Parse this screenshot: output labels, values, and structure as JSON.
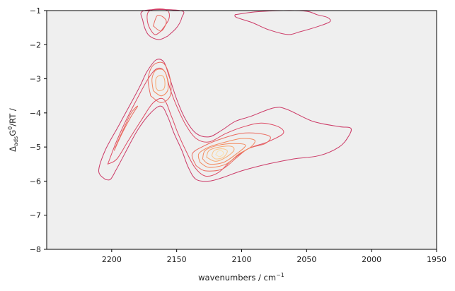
{
  "chart_data": {
    "type": "contour",
    "xlabel": "wavenumbers / cm",
    "xlabel_sup": "−1",
    "ylabel_parts": {
      "delta": "Δ",
      "sub": "ads",
      "g": "G",
      "sup": "0",
      "rest": "/RT /"
    },
    "xlim": [
      2250,
      1950
    ],
    "ylim": [
      -8,
      -1
    ],
    "x_reversed": true,
    "x_ticks": [
      2200,
      2150,
      2100,
      2050,
      2000,
      1950
    ],
    "y_ticks": [
      -1,
      -2,
      -3,
      -4,
      -5,
      -6,
      -7,
      -8
    ],
    "x_tick_labels": [
      "2200",
      "2150",
      "2100",
      "2050",
      "2000",
      "1950"
    ],
    "y_tick_labels": [
      "−1",
      "−2",
      "−3",
      "−4",
      "−5",
      "−6",
      "−7",
      "−8"
    ],
    "plot_background": "#efefef",
    "colormap": [
      "#cc3a67",
      "#e35860",
      "#ef7b5f",
      "#f59c6b",
      "#f9bc82",
      "#fcdca4"
    ],
    "grid": false,
    "density_peaks": [
      {
        "x": 2117,
        "y": -5.2,
        "relative_height": 1.0
      },
      {
        "x": 2162,
        "y": -3.1,
        "relative_height": 0.6
      },
      {
        "x": 2187,
        "y": -4.4,
        "relative_height": 0.45
      },
      {
        "x": 2160,
        "y": -1.3,
        "relative_height": 0.4
      },
      {
        "x": 2080,
        "y": -4.6,
        "relative_height": 0.2
      }
    ],
    "contours": [
      {
        "level": 1,
        "color": "#cc3a67",
        "points": [
          [
            2205,
            -5.95
          ],
          [
            2210,
            -5.7
          ],
          [
            2205,
            -5.1
          ],
          [
            2195,
            -4.4
          ],
          [
            2185,
            -3.7
          ],
          [
            2178,
            -3.2
          ],
          [
            2173,
            -2.8
          ],
          [
            2166,
            -2.45
          ],
          [
            2160,
            -2.5
          ],
          [
            2156,
            -2.9
          ],
          [
            2150,
            -3.6
          ],
          [
            2143,
            -4.2
          ],
          [
            2135,
            -4.6
          ],
          [
            2125,
            -4.7
          ],
          [
            2115,
            -4.5
          ],
          [
            2105,
            -4.25
          ],
          [
            2093,
            -4.1
          ],
          [
            2075,
            -3.85
          ],
          [
            2065,
            -3.9
          ],
          [
            2045,
            -4.25
          ],
          [
            2025,
            -4.4
          ],
          [
            2016,
            -4.45
          ],
          [
            2018,
            -4.7
          ],
          [
            2025,
            -5.0
          ],
          [
            2040,
            -5.25
          ],
          [
            2060,
            -5.35
          ],
          [
            2080,
            -5.5
          ],
          [
            2100,
            -5.7
          ],
          [
            2115,
            -5.9
          ],
          [
            2125,
            -6.0
          ],
          [
            2135,
            -5.95
          ],
          [
            2141,
            -5.6
          ],
          [
            2146,
            -5.1
          ],
          [
            2152,
            -4.6
          ],
          [
            2157,
            -4.1
          ],
          [
            2162,
            -3.8
          ],
          [
            2170,
            -4.0
          ],
          [
            2180,
            -4.5
          ],
          [
            2190,
            -5.2
          ],
          [
            2197,
            -5.7
          ],
          [
            2201,
            -5.95
          ],
          [
            2205,
            -5.95
          ]
        ]
      },
      {
        "level": 2,
        "color": "#dd4a64",
        "points": [
          [
            2203,
            -5.5
          ],
          [
            2197,
            -4.9
          ],
          [
            2190,
            -4.3
          ],
          [
            2182,
            -3.7
          ],
          [
            2172,
            -3.0
          ],
          [
            2165,
            -2.7
          ],
          [
            2159,
            -2.8
          ],
          [
            2155,
            -3.3
          ],
          [
            2150,
            -3.8
          ],
          [
            2143,
            -4.35
          ],
          [
            2135,
            -4.75
          ],
          [
            2125,
            -4.85
          ],
          [
            2112,
            -4.6
          ],
          [
            2098,
            -4.4
          ],
          [
            2085,
            -4.3
          ],
          [
            2072,
            -4.4
          ],
          [
            2068,
            -4.6
          ],
          [
            2080,
            -4.85
          ],
          [
            2095,
            -5.05
          ],
          [
            2108,
            -5.4
          ],
          [
            2118,
            -5.75
          ],
          [
            2128,
            -5.85
          ],
          [
            2136,
            -5.6
          ],
          [
            2143,
            -5.1
          ],
          [
            2149,
            -4.6
          ],
          [
            2154,
            -4.1
          ],
          [
            2160,
            -3.6
          ],
          [
            2168,
            -3.7
          ],
          [
            2177,
            -4.2
          ],
          [
            2187,
            -4.8
          ],
          [
            2196,
            -5.35
          ],
          [
            2203,
            -5.5
          ]
        ]
      },
      {
        "level": 2,
        "color": "#dd4a64",
        "points": [
          [
            2162,
            -1.6
          ],
          [
            2156,
            -1.25
          ],
          [
            2157,
            -1.0
          ],
          [
            2165,
            -0.95
          ],
          [
            2172,
            -1.05
          ],
          [
            2172,
            -1.4
          ],
          [
            2167,
            -1.7
          ],
          [
            2162,
            -1.6
          ]
        ]
      },
      {
        "level": 1,
        "color": "#cc3a67",
        "points": [
          [
            2157,
            -1.75
          ],
          [
            2150,
            -1.5
          ],
          [
            2146,
            -1.2
          ],
          [
            2147,
            -1.0
          ],
          [
            2175,
            -1.0
          ],
          [
            2176,
            -1.3
          ],
          [
            2172,
            -1.7
          ],
          [
            2164,
            -1.85
          ],
          [
            2157,
            -1.75
          ]
        ]
      },
      {
        "level": 1,
        "color": "#cc3a67",
        "points": [
          [
            2105,
            -1.12
          ],
          [
            2104,
            -1.2
          ],
          [
            2092,
            -1.35
          ],
          [
            2080,
            -1.55
          ],
          [
            2065,
            -1.7
          ],
          [
            2055,
            -1.62
          ],
          [
            2040,
            -1.45
          ],
          [
            2032,
            -1.32
          ],
          [
            2034,
            -1.2
          ],
          [
            2042,
            -1.12
          ],
          [
            2050,
            -1.02
          ],
          [
            2068,
            -1.0
          ],
          [
            2090,
            -1.04
          ],
          [
            2105,
            -1.12
          ]
        ]
      },
      {
        "level": 3,
        "color": "#ea6a5f",
        "points": [
          [
            2198,
            -5.1
          ],
          [
            2192,
            -4.6
          ],
          [
            2185,
            -4.1
          ],
          [
            2180,
            -3.8
          ],
          [
            2185,
            -4.0
          ],
          [
            2190,
            -4.4
          ],
          [
            2196,
            -4.9
          ],
          [
            2198,
            -5.1
          ]
        ]
      },
      {
        "level": 3,
        "color": "#ea6a5f",
        "points": [
          [
            2170,
            -3.5
          ],
          [
            2172,
            -3.0
          ],
          [
            2168,
            -2.6
          ],
          [
            2160,
            -2.55
          ],
          [
            2155,
            -3.0
          ],
          [
            2155,
            -3.5
          ],
          [
            2162,
            -3.7
          ],
          [
            2170,
            -3.5
          ]
        ]
      },
      {
        "level": 4,
        "color": "#f3895f",
        "points": [
          [
            2168,
            -3.35
          ],
          [
            2169,
            -3.0
          ],
          [
            2166,
            -2.75
          ],
          [
            2160,
            -2.75
          ],
          [
            2157,
            -3.05
          ],
          [
            2157,
            -3.35
          ],
          [
            2162,
            -3.5
          ],
          [
            2168,
            -3.35
          ]
        ]
      },
      {
        "level": 5,
        "color": "#f7a870",
        "points": [
          [
            2166,
            -3.25
          ],
          [
            2166,
            -3.0
          ],
          [
            2163,
            -2.9
          ],
          [
            2160,
            -2.95
          ],
          [
            2159,
            -3.15
          ],
          [
            2160,
            -3.3
          ],
          [
            2164,
            -3.35
          ],
          [
            2166,
            -3.25
          ]
        ]
      },
      {
        "level": 3,
        "color": "#ea6a5f",
        "points": [
          [
            2168,
            -1.45
          ],
          [
            2165,
            -1.15
          ],
          [
            2160,
            -1.2
          ],
          [
            2158,
            -1.35
          ],
          [
            2162,
            -1.6
          ],
          [
            2168,
            -1.45
          ]
        ]
      },
      {
        "level": 3,
        "color": "#ea6a5f",
        "points": [
          [
            2135,
            -5.55
          ],
          [
            2138,
            -5.2
          ],
          [
            2128,
            -4.95
          ],
          [
            2115,
            -4.75
          ],
          [
            2100,
            -4.6
          ],
          [
            2088,
            -4.6
          ],
          [
            2078,
            -4.7
          ],
          [
            2082,
            -4.9
          ],
          [
            2095,
            -5.05
          ],
          [
            2105,
            -5.35
          ],
          [
            2115,
            -5.65
          ],
          [
            2128,
            -5.7
          ],
          [
            2135,
            -5.55
          ]
        ]
      },
      {
        "level": 4,
        "color": "#f3895f",
        "points": [
          [
            2132,
            -5.45
          ],
          [
            2133,
            -5.2
          ],
          [
            2125,
            -5.0
          ],
          [
            2112,
            -4.85
          ],
          [
            2100,
            -4.75
          ],
          [
            2090,
            -4.8
          ],
          [
            2093,
            -5.0
          ],
          [
            2102,
            -5.2
          ],
          [
            2112,
            -5.5
          ],
          [
            2125,
            -5.6
          ],
          [
            2132,
            -5.45
          ]
        ]
      },
      {
        "level": 4,
        "color": "#f3895f",
        "points": [
          [
            2130,
            -5.35
          ],
          [
            2128,
            -5.1
          ],
          [
            2118,
            -4.95
          ],
          [
            2106,
            -4.9
          ],
          [
            2097,
            -4.95
          ],
          [
            2104,
            -5.2
          ],
          [
            2114,
            -5.45
          ],
          [
            2125,
            -5.5
          ],
          [
            2130,
            -5.35
          ]
        ]
      },
      {
        "level": 5,
        "color": "#f7a870",
        "points": [
          [
            2127,
            -5.3
          ],
          [
            2125,
            -5.1
          ],
          [
            2117,
            -5.0
          ],
          [
            2108,
            -4.98
          ],
          [
            2106,
            -5.1
          ],
          [
            2112,
            -5.3
          ],
          [
            2120,
            -5.42
          ],
          [
            2127,
            -5.3
          ]
        ]
      },
      {
        "level": 6,
        "color": "#fac88c",
        "points": [
          [
            2123,
            -5.25
          ],
          [
            2121,
            -5.1
          ],
          [
            2115,
            -5.05
          ],
          [
            2111,
            -5.12
          ],
          [
            2114,
            -5.3
          ],
          [
            2120,
            -5.35
          ],
          [
            2123,
            -5.25
          ]
        ]
      },
      {
        "level": 7,
        "color": "#fce0aa",
        "points": [
          [
            2120,
            -5.22
          ],
          [
            2118,
            -5.12
          ],
          [
            2115,
            -5.12
          ],
          [
            2114,
            -5.2
          ],
          [
            2117,
            -5.28
          ],
          [
            2120,
            -5.22
          ]
        ]
      }
    ]
  }
}
